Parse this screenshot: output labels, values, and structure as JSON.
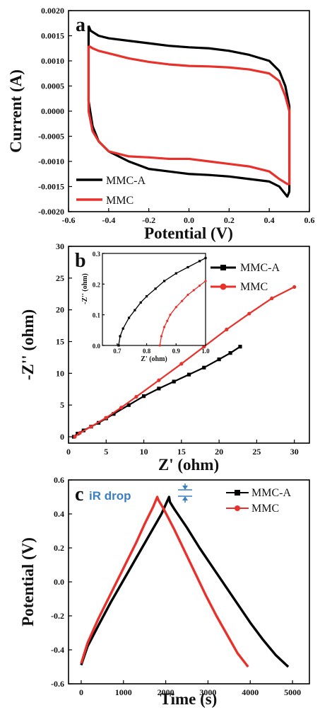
{
  "chart_data": [
    {
      "type": "line",
      "panel": "a",
      "xlabel": "Potential (V)",
      "ylabel": "Current (A)",
      "xlim": [
        -0.6,
        0.6
      ],
      "ylim": [
        -0.002,
        0.002
      ],
      "xticks": [
        "-0.6",
        "-0.4",
        "-0.2",
        "0.0",
        "0.2",
        "0.4",
        "0.6"
      ],
      "yticks": [
        "-0.0020",
        "-0.0015",
        "-0.0010",
        "-0.0005",
        "0.0000",
        "0.0005",
        "0.0010",
        "0.0015",
        "0.0020"
      ],
      "legend": "bottom-left",
      "series": [
        {
          "name": "MMC-A",
          "color": "#000000",
          "x": [
            -0.5,
            -0.49,
            -0.45,
            -0.4,
            -0.3,
            -0.2,
            -0.1,
            0.0,
            0.1,
            0.2,
            0.3,
            0.4,
            0.45,
            0.48,
            0.5,
            0.5,
            0.49,
            0.45,
            0.4,
            0.3,
            0.2,
            0.1,
            0.0,
            -0.1,
            -0.2,
            -0.3,
            -0.4,
            -0.45,
            -0.48,
            -0.5,
            -0.5
          ],
          "y": [
            0.0017,
            0.0016,
            0.0015,
            0.00145,
            0.0014,
            0.00135,
            0.0013,
            0.00127,
            0.00125,
            0.0012,
            0.00112,
            0.001,
            0.0008,
            0.0005,
            0.0001,
            -0.0016,
            -0.0017,
            -0.0015,
            -0.0014,
            -0.00135,
            -0.0013,
            -0.00127,
            -0.00125,
            -0.0012,
            -0.00115,
            -0.001,
            -0.0008,
            -0.0006,
            -0.0003,
            0.0002,
            0.0017
          ]
        },
        {
          "name": "MMC",
          "color": "#e8312b",
          "x": [
            -0.5,
            -0.48,
            -0.45,
            -0.4,
            -0.3,
            -0.2,
            -0.1,
            0.0,
            0.1,
            0.2,
            0.3,
            0.4,
            0.45,
            0.48,
            0.5,
            0.5,
            0.49,
            0.45,
            0.4,
            0.3,
            0.2,
            0.1,
            0.0,
            -0.1,
            -0.2,
            -0.3,
            -0.4,
            -0.45,
            -0.48,
            -0.5,
            -0.5
          ],
          "y": [
            0.0013,
            0.00125,
            0.0012,
            0.00115,
            0.00105,
            0.00098,
            0.00093,
            0.0009,
            0.00089,
            0.00087,
            0.00083,
            0.00075,
            0.0006,
            0.0003,
            0.0,
            -0.00145,
            -0.00145,
            -0.00135,
            -0.0012,
            -0.0011,
            -0.00105,
            -0.001,
            -0.00095,
            -0.00095,
            -0.00092,
            -0.0009,
            -0.0008,
            -0.0006,
            -0.0004,
            0.0,
            0.0013
          ]
        }
      ]
    },
    {
      "type": "line",
      "panel": "b",
      "xlabel": "Z' (ohm)",
      "ylabel": "-Z'' (ohm)",
      "xlim": [
        0,
        32
      ],
      "ylim": [
        -1,
        30
      ],
      "xticks": [
        "0",
        "5",
        "10",
        "15",
        "20",
        "25",
        "30"
      ],
      "yticks": [
        "0",
        "5",
        "10",
        "15",
        "20",
        "25",
        "30"
      ],
      "legend": "top-right",
      "series": [
        {
          "name": "MMC-A",
          "color": "#000000",
          "x": [
            0.7,
            1.2,
            2.0,
            3.0,
            4.0,
            5.0,
            6.0,
            8.0,
            10.0,
            12.0,
            14.0,
            16.0,
            18.0,
            20.0,
            21.5,
            22.8
          ],
          "y": [
            0.0,
            0.5,
            1.0,
            1.6,
            2.2,
            2.9,
            3.6,
            5.0,
            6.4,
            7.6,
            8.7,
            9.8,
            10.9,
            12.2,
            13.2,
            14.2
          ]
        },
        {
          "name": "MMC",
          "color": "#e8312b",
          "x": [
            0.84,
            1.5,
            3.0,
            5.0,
            7.0,
            9.0,
            12.0,
            15.0,
            18.0,
            21.0,
            24.0,
            27.0,
            30.0
          ],
          "y": [
            0.0,
            0.6,
            1.6,
            3.0,
            4.6,
            6.3,
            8.9,
            11.5,
            14.2,
            16.9,
            19.4,
            21.8,
            23.6
          ]
        }
      ],
      "inset": {
        "xlabel": "Z' (ohm)",
        "ylabel": "-Z'' (ohm)",
        "xlim": [
          0.65,
          1.0
        ],
        "ylim": [
          0,
          0.3
        ],
        "xticks": [
          "0.7",
          "0.8",
          "0.9",
          "1.0"
        ],
        "yticks": [
          "0.0",
          "0.1",
          "0.2",
          "0.3"
        ],
        "series": [
          {
            "name": "MMC-A",
            "color": "#000000",
            "x": [
              0.705,
              0.71,
              0.72,
              0.74,
              0.76,
              0.78,
              0.8,
              0.83,
              0.86,
              0.9,
              0.94,
              0.98,
              1.0
            ],
            "y": [
              0.0,
              0.03,
              0.055,
              0.09,
              0.115,
              0.14,
              0.16,
              0.185,
              0.21,
              0.235,
              0.255,
              0.275,
              0.285
            ]
          },
          {
            "name": "MMC",
            "color": "#e8312b",
            "x": [
              0.845,
              0.85,
              0.86,
              0.87,
              0.88,
              0.9,
              0.92,
              0.94,
              0.96,
              0.98,
              1.0
            ],
            "y": [
              0.0,
              0.03,
              0.06,
              0.08,
              0.1,
              0.125,
              0.145,
              0.165,
              0.18,
              0.195,
              0.21
            ]
          }
        ]
      }
    },
    {
      "type": "line",
      "panel": "c",
      "xlabel": "Time (s)",
      "ylabel": "Potential (V)",
      "xlim": [
        -300,
        5400
      ],
      "ylim": [
        -0.6,
        0.6
      ],
      "xticks": [
        "0",
        "1000",
        "2000",
        "3000",
        "4000",
        "5000"
      ],
      "yticks": [
        "-0.6",
        "-0.4",
        "-0.2",
        "0.0",
        "0.2",
        "0.4",
        "0.6"
      ],
      "legend": "top-right",
      "annotation": "iR drop",
      "series": [
        {
          "name": "MMC-A",
          "color": "#000000",
          "x": [
            0,
            150,
            400,
            700,
            1000,
            1300,
            1600,
            1900,
            2080,
            2100,
            2200,
            2500,
            2800,
            3100,
            3400,
            3700,
            4000,
            4300,
            4600,
            4900
          ],
          "y": [
            -0.49,
            -0.38,
            -0.26,
            -0.12,
            0.01,
            0.14,
            0.27,
            0.4,
            0.5,
            0.47,
            0.43,
            0.32,
            0.2,
            0.09,
            -0.02,
            -0.13,
            -0.24,
            -0.34,
            -0.43,
            -0.5
          ]
        },
        {
          "name": "MMC",
          "color": "#e8312b",
          "x": [
            0,
            150,
            400,
            700,
            1000,
            1300,
            1500,
            1700,
            1800,
            1830,
            1950,
            2200,
            2450,
            2700,
            2950,
            3200,
            3450,
            3700,
            3950
          ],
          "y": [
            -0.48,
            -0.36,
            -0.22,
            -0.07,
            0.08,
            0.23,
            0.34,
            0.44,
            0.5,
            0.48,
            0.43,
            0.31,
            0.18,
            0.05,
            -0.08,
            -0.2,
            -0.31,
            -0.42,
            -0.5
          ]
        }
      ]
    }
  ],
  "panels": {
    "a": {
      "letter": "a"
    },
    "b": {
      "letter": "b"
    },
    "c": {
      "letter": "c"
    }
  }
}
